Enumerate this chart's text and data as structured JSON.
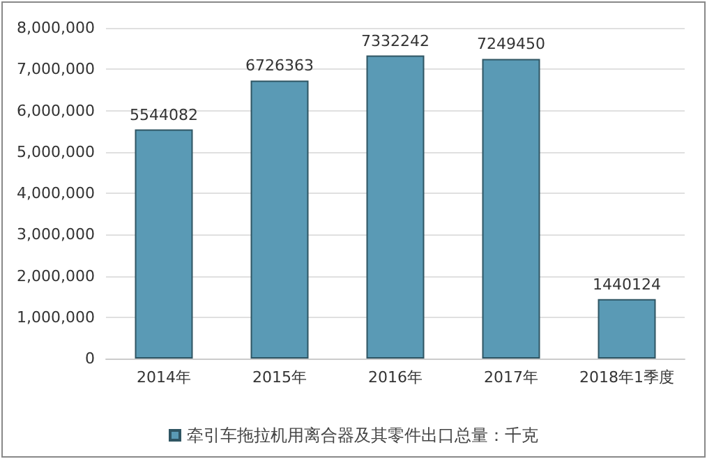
{
  "chart_data": {
    "type": "bar",
    "categories": [
      "2014年",
      "2015年",
      "2016年",
      "2017年",
      "2018年1季度"
    ],
    "series": [
      {
        "name": "牵引车拖拉机用离合器及其零件出口总量：千克",
        "color": "#5a9ab5",
        "values": [
          5544082,
          6726363,
          7332242,
          7249450,
          1440124
        ]
      }
    ],
    "ylim": [
      0,
      8000000
    ],
    "yticks": [
      {
        "value": 0,
        "label": "0"
      },
      {
        "value": 1000000,
        "label": "1,000,000"
      },
      {
        "value": 2000000,
        "label": "2,000,000"
      },
      {
        "value": 3000000,
        "label": "3,000,000"
      },
      {
        "value": 4000000,
        "label": "4,000,000"
      },
      {
        "value": 5000000,
        "label": "5,000,000"
      },
      {
        "value": 6000000,
        "label": "6,000,000"
      },
      {
        "value": 7000000,
        "label": "7,000,000"
      },
      {
        "value": 8000000,
        "label": "8,000,000"
      }
    ],
    "grid": "y",
    "legend": "bottom",
    "data_labels": true
  }
}
